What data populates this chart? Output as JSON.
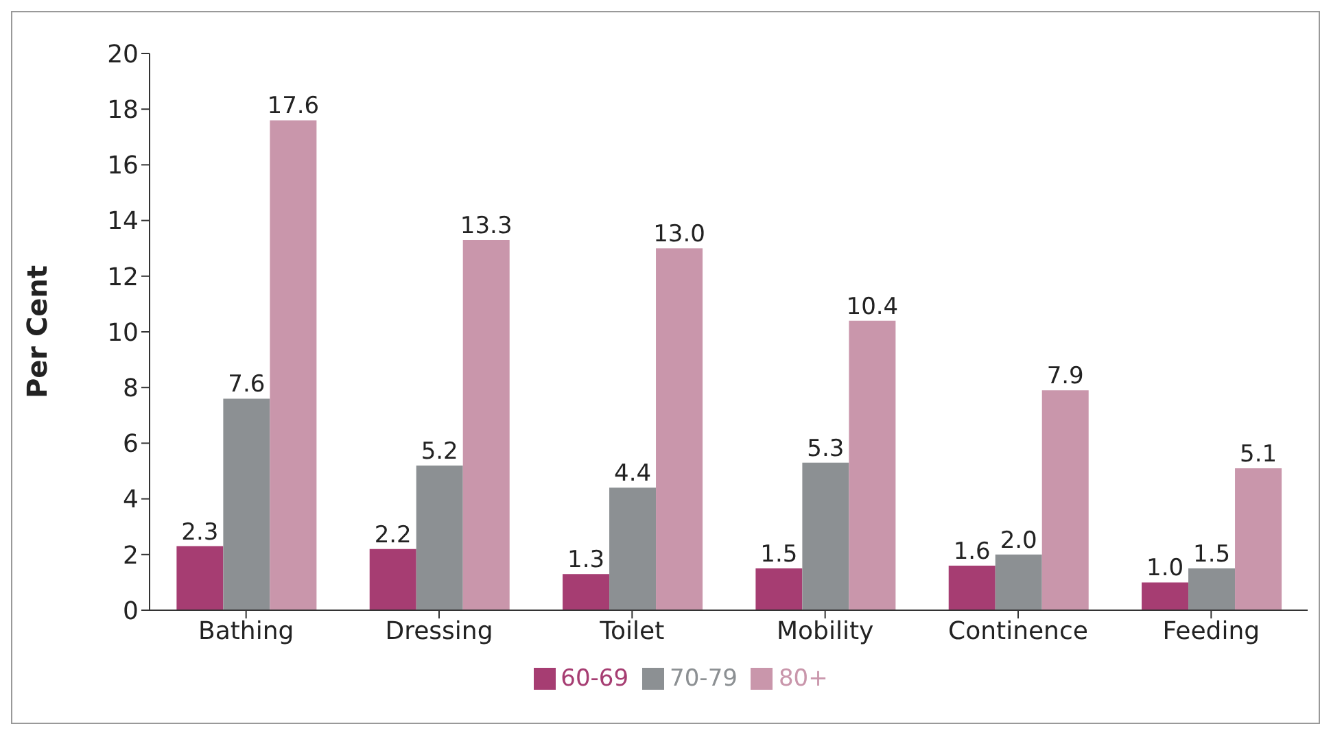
{
  "chart_data": {
    "type": "bar",
    "ylabel": "Per Cent",
    "categories": [
      "Bathing",
      "Dressing",
      "Toilet",
      "Mobility",
      "Continence",
      "Feeding"
    ],
    "series": [
      {
        "name": "60-69",
        "color": "#a63d72",
        "values": [
          2.3,
          2.2,
          1.3,
          1.5,
          1.6,
          1.0
        ],
        "value_labels": [
          "2.3",
          "2.2",
          "1.3",
          "1.5",
          "1.6",
          "1.0"
        ]
      },
      {
        "name": "70-79",
        "color": "#8c9093",
        "values": [
          7.6,
          5.2,
          4.4,
          5.3,
          2.0,
          1.5
        ],
        "value_labels": [
          "7.6",
          "5.2",
          "4.4",
          "5.3",
          "2.0",
          "1.5"
        ]
      },
      {
        "name": "80+",
        "color": "#c996ab",
        "values": [
          17.6,
          13.3,
          13.0,
          10.4,
          7.9,
          5.1
        ],
        "value_labels": [
          "17.6",
          "13.3",
          "13.0",
          "10.4",
          "7.9",
          "5.1"
        ]
      }
    ],
    "ylim": [
      0,
      20
    ],
    "yticks": [
      0,
      2,
      4,
      6,
      8,
      10,
      12,
      14,
      16,
      18,
      20
    ],
    "grid": false,
    "legend": "bottom"
  }
}
